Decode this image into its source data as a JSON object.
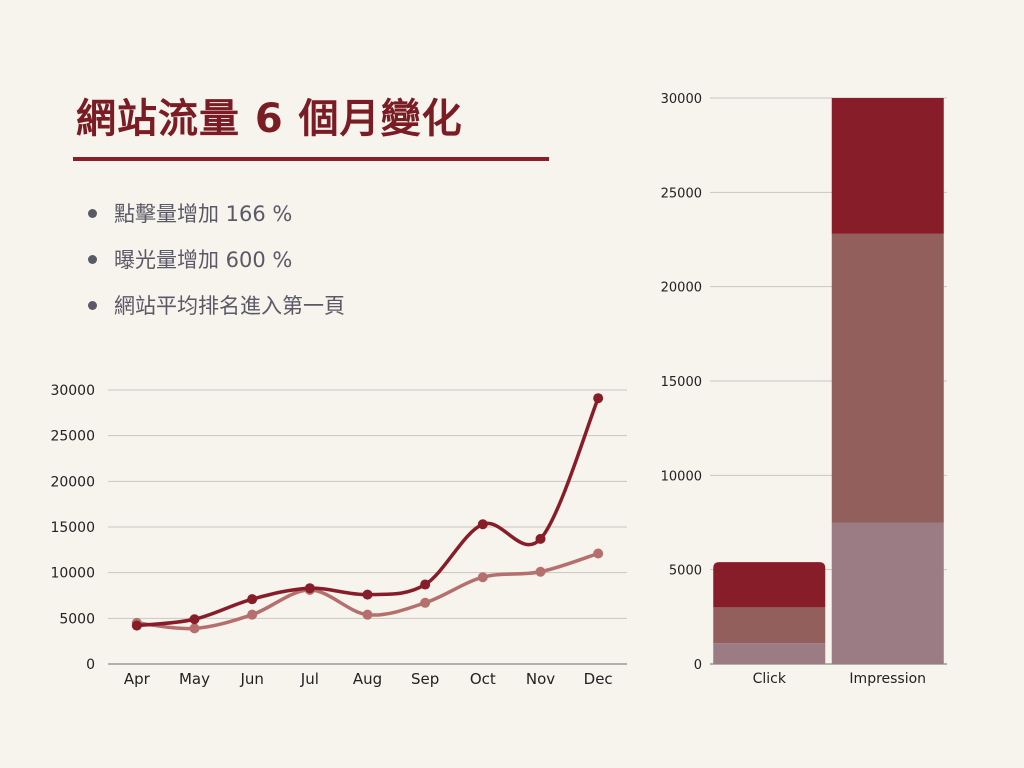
{
  "title": "網站流量 6 個月變化",
  "bullets": [
    "點擊量增加 166 %",
    "曝光量增加  600 %",
    "網站平均排名進入第一頁"
  ],
  "colors": {
    "background": "#f7f3ed",
    "accent": "#8b1d27",
    "title": "#7a1c24",
    "bullet_text": "#5a5a66",
    "series_dark": "#861d28",
    "series_light": "#b56f6c",
    "segment_mid": "#925f5d",
    "segment_light": "#9b7b84"
  },
  "chart_data": [
    {
      "type": "line",
      "categories": [
        "Apr",
        "May",
        "Jun",
        "Jul",
        "Aug",
        "Sep",
        "Oct",
        "Nov",
        "Dec"
      ],
      "yticks": [
        0,
        5000,
        10000,
        15000,
        20000,
        25000,
        30000
      ],
      "ylim": [
        0,
        30000
      ],
      "grid": true,
      "smooth": true,
      "series": [
        {
          "values": [
            4200,
            4900,
            7100,
            8300,
            7600,
            8700,
            15300,
            13700,
            29100
          ],
          "color": "#861d28"
        },
        {
          "values": [
            4500,
            3900,
            5400,
            8100,
            5400,
            6700,
            9500,
            10100,
            12100
          ],
          "color": "#b56f6c"
        }
      ]
    },
    {
      "type": "bar",
      "stacked": true,
      "categories": [
        "Click",
        "Impression"
      ],
      "yticks": [
        0,
        5000,
        10000,
        15000,
        20000,
        25000,
        30000
      ],
      "ylim": [
        0,
        30000
      ],
      "grid": true,
      "series": [
        {
          "values": [
            1100,
            7500
          ],
          "color": "#9b7b84"
        },
        {
          "values": [
            1900,
            15300
          ],
          "color": "#925f5d"
        },
        {
          "values": [
            2400,
            7200
          ],
          "color": "#861d28"
        }
      ]
    }
  ]
}
